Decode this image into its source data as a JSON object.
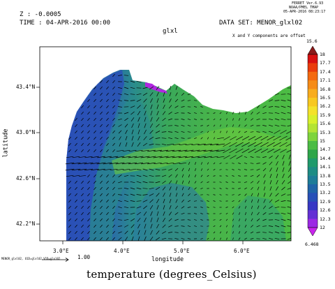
{
  "header": {
    "z_label": "Z : -0.0005",
    "time_label": "TIME : 04-APR-2016 00:00",
    "var_name": "glxl",
    "dataset_label": "DATA SET: MENOR_glxl02",
    "offset_note": "X and Y components are offset",
    "ferret_lines": [
      "FERRET Ver.6.93",
      "NOAA/PMEL TMAP",
      "05-APR-2016 08:23:17"
    ]
  },
  "map": {
    "xlabel": "longitude",
    "ylabel": "latitude",
    "x_ticks": [
      "3.0°E",
      "4.0°E",
      "5.0°E",
      "6.0°E"
    ],
    "y_ticks": [
      "43.4°N",
      "43.0°N",
      "42.6°N",
      "42.2°N"
    ],
    "vector_scale_value": "1.00",
    "bottom_left_note": "MENOR_glxl02, U1D=glxl02,V1D=glxl02"
  },
  "colorbar": {
    "top_value": "15.6",
    "bottom_value": "6.468",
    "labels": [
      "18",
      "17.7",
      "17.4",
      "17.1",
      "16.8",
      "16.5",
      "16.2",
      "15.9",
      "15.6",
      "15.3",
      "15",
      "14.7",
      "14.4",
      "14.1",
      "13.8",
      "13.5",
      "13.2",
      "12.9",
      "12.6",
      "12.3",
      "12"
    ],
    "colors": [
      "#8b1a1a",
      "#d81010",
      "#ea3c0c",
      "#f46a10",
      "#f68c18",
      "#f8ac1e",
      "#f8c820",
      "#f4e22a",
      "#d8f02c",
      "#b4e434",
      "#7ed43c",
      "#4cbc44",
      "#2ea64a",
      "#209a6c",
      "#1e8c84",
      "#1e7c98",
      "#2064a8",
      "#2850b8",
      "#3838c4",
      "#6430d4",
      "#9c28e4",
      "#c824ec"
    ]
  },
  "caption": "temperature (degrees_Celsius)"
}
